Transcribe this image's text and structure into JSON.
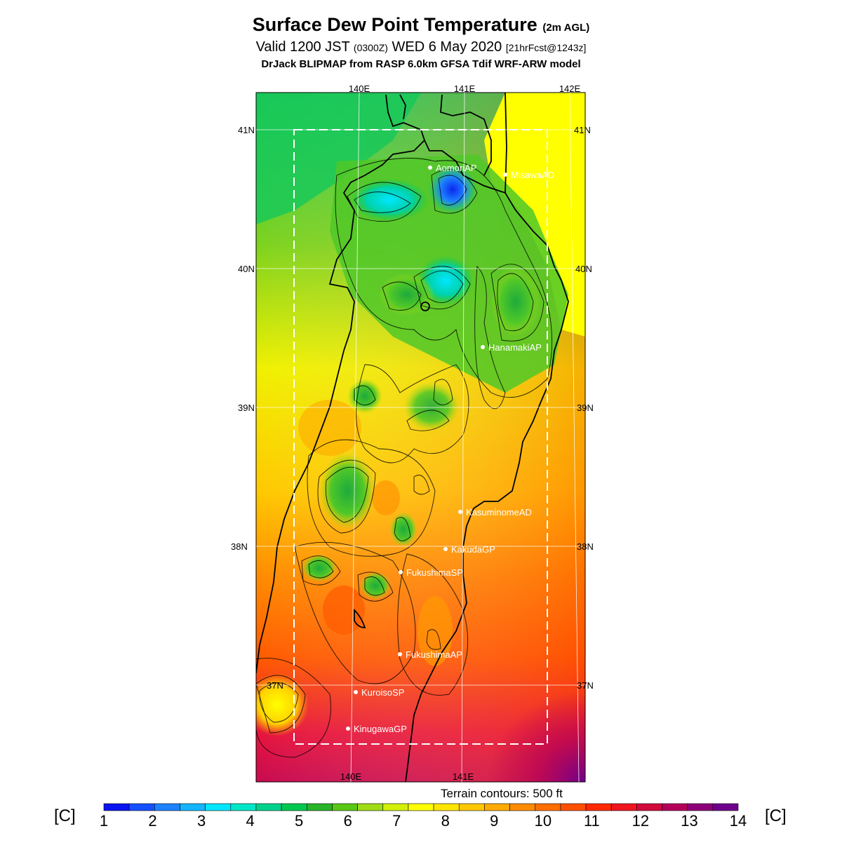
{
  "title": {
    "main": "Surface Dew Point Temperature",
    "suffix": "(2m AGL)",
    "valid_prefix": "Valid 1200 JST",
    "valid_utc": "(0300Z)",
    "valid_date": "WED 6 May 2020",
    "forecast": "[21hrFcst@1243z]",
    "model": "DrJack BLIPMAP from RASP 6.0km GFSA Tdif WRF-ARW model"
  },
  "map": {
    "lon_labels_top": [
      "140E",
      "141E",
      "142E"
    ],
    "lon_labels_bottom": [
      "140E",
      "141E"
    ],
    "lat_labels_left": [
      "41N",
      "40N",
      "39N",
      "38N",
      "37N"
    ],
    "lat_labels_right": [
      "41N",
      "40N",
      "39N",
      "38N",
      "37N"
    ],
    "sites": [
      {
        "name": "AomoriAP"
      },
      {
        "name": "MisawaAD"
      },
      {
        "name": "HanamakiAP"
      },
      {
        "name": "KasuminomeAD"
      },
      {
        "name": "KakudaGP"
      },
      {
        "name": "FukushimaSP"
      },
      {
        "name": "FukushimaAP"
      },
      {
        "name": "KuroisoSP"
      },
      {
        "name": "KinugawaGP"
      }
    ],
    "terrain_note": "Terrain contours: 500 ft"
  },
  "colorbar": {
    "unit": "[C]",
    "ticks": [
      "1",
      "2",
      "3",
      "4",
      "5",
      "6",
      "7",
      "8",
      "9",
      "10",
      "11",
      "12",
      "13",
      "14"
    ],
    "colors": [
      "#0a14f0",
      "#1450ff",
      "#1e82ff",
      "#14b4ff",
      "#00e6ff",
      "#00e6c8",
      "#00d28c",
      "#00c850",
      "#28b428",
      "#5ac814",
      "#a0dc14",
      "#d2f00a",
      "#ffff00",
      "#ffe600",
      "#ffc800",
      "#ffaa00",
      "#ff8c00",
      "#ff6e00",
      "#ff5000",
      "#ff2800",
      "#f0141e",
      "#d20a3c",
      "#b4005a",
      "#8c0078",
      "#6e008c"
    ]
  }
}
